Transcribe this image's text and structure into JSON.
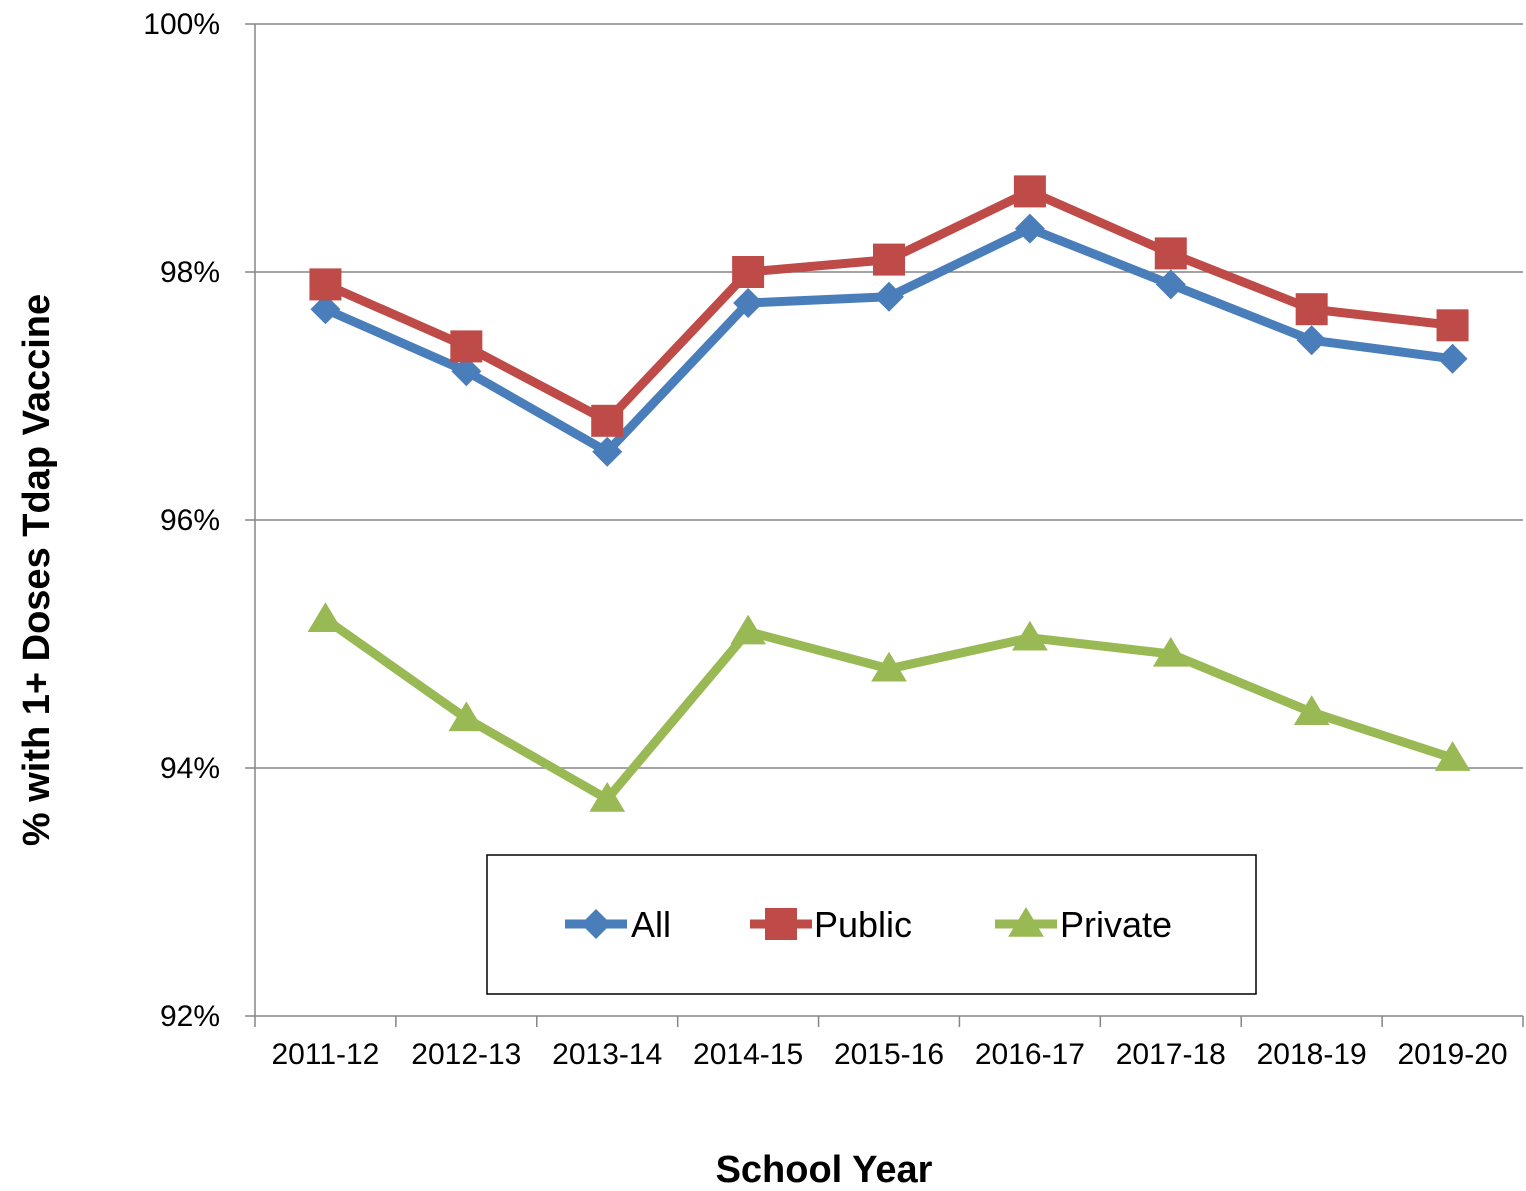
{
  "chart_data": {
    "type": "line",
    "categories": [
      "2011-12",
      "2012-13",
      "2013-14",
      "2014-15",
      "2015-16",
      "2016-17",
      "2017-18",
      "2018-19",
      "2019-20"
    ],
    "series": [
      {
        "name": "All",
        "color": "#4A7EBB",
        "marker": "diamond",
        "values": [
          97.7,
          97.2,
          96.55,
          97.75,
          97.8,
          98.35,
          97.9,
          97.45,
          97.3
        ]
      },
      {
        "name": "Public",
        "color": "#BE4B48",
        "marker": "square",
        "values": [
          97.9,
          97.4,
          96.8,
          98.0,
          98.1,
          98.65,
          98.15,
          97.7,
          97.57
        ]
      },
      {
        "name": "Private",
        "color": "#98B954",
        "marker": "triangle",
        "values": [
          95.2,
          94.4,
          93.75,
          95.1,
          94.8,
          95.05,
          94.92,
          94.45,
          94.08
        ]
      }
    ],
    "y_ticks": [
      "100%",
      "98%",
      "96%",
      "94%",
      "92%"
    ],
    "ylim": [
      92,
      100
    ],
    "ylabel": "% with 1+ Doses Tdap Vaccine",
    "xlabel": "School Year",
    "grid": true,
    "legend": "bottom-center inside plot"
  }
}
